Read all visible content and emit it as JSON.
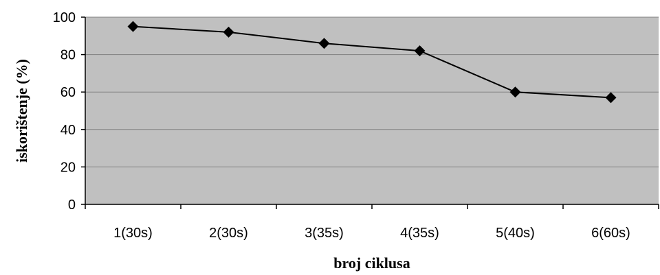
{
  "chart_data": {
    "type": "line",
    "title": "",
    "xlabel": "broj ciklusa",
    "ylabel": "iskorištenje (%)",
    "categories": [
      "1(30s)",
      "2(30s)",
      "3(35s)",
      "4(35s)",
      "5(40s)",
      "6(60s)"
    ],
    "series": [
      {
        "values": [
          95,
          92,
          86,
          82,
          60,
          57
        ]
      }
    ],
    "ylim": [
      0,
      100
    ],
    "yticks": [
      0,
      20,
      40,
      60,
      80,
      100
    ],
    "grid": true,
    "colors": {
      "plot_background": "#c0c0c0",
      "gridline": "#808080",
      "line": "#000000",
      "marker": "#000000",
      "axis": "#000000"
    },
    "marker": "diamond"
  }
}
